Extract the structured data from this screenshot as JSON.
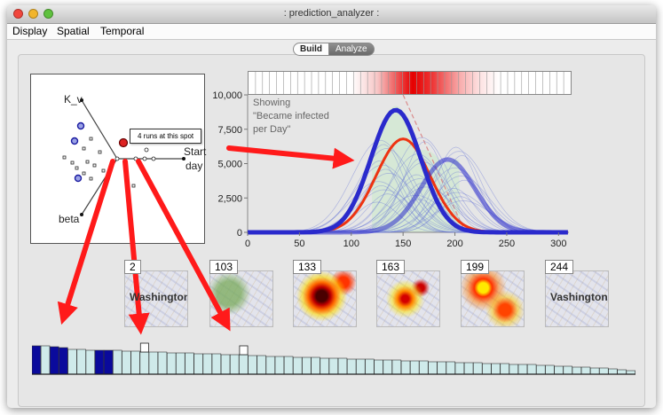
{
  "window": {
    "title": ": prediction_analyzer :"
  },
  "menu": {
    "items": [
      "Display",
      "Spatial",
      "Temporal"
    ]
  },
  "mode_switch": {
    "build": "Build",
    "analyze": "Analyze",
    "selected": "Analyze"
  },
  "parameter_plot": {
    "axes": {
      "kv": "K_v",
      "start": "Start",
      "day": "day",
      "beta": "beta"
    },
    "tooltip": "4 runs at this spot"
  },
  "chart_data": {
    "type": "line",
    "annotation": [
      "Showing",
      "\"Became infected",
      " per Day\""
    ],
    "xticks": [
      0,
      50,
      100,
      150,
      200,
      250,
      300
    ],
    "yticks": [
      "0",
      "2,500",
      "5,000",
      "7,500",
      "10,000"
    ],
    "xlim": [
      0,
      310
    ],
    "ylim": [
      0,
      10000
    ],
    "series_colors": {
      "highlight": "#2a2acc",
      "mean": "#ee3311",
      "ensemble": "#6b78d6",
      "envelope": "#cfe8cf"
    },
    "highlighted": [
      {
        "peak_day": 143,
        "peak_value": 8900,
        "width": 24
      },
      {
        "peak_day": 193,
        "peak_value": 5300,
        "width": 26
      }
    ],
    "mean_curve": {
      "peak_day": 150,
      "peak_value": 6800,
      "width": 26
    }
  },
  "thumbnails": [
    {
      "day": "2",
      "heat": 0,
      "city": "Washington"
    },
    {
      "day": "103",
      "heat": 1,
      "city": ""
    },
    {
      "day": "133",
      "heat": 3,
      "city": ""
    },
    {
      "day": "163",
      "heat": 4,
      "city": ""
    },
    {
      "day": "199",
      "heat": 2,
      "city": ""
    },
    {
      "day": "244",
      "heat": 0,
      "city": "Vashington"
    }
  ],
  "run_bars": {
    "values": [
      32,
      32,
      31,
      30,
      28,
      28,
      27,
      27,
      27,
      27,
      26,
      26,
      25,
      25,
      25,
      24,
      24,
      24,
      23,
      23,
      23,
      22,
      22,
      22,
      21,
      21,
      20,
      20,
      20,
      19,
      19,
      19,
      18,
      18,
      18,
      17,
      17,
      17,
      16,
      16,
      16,
      15,
      15,
      15,
      14,
      14,
      14,
      13,
      13,
      13,
      12,
      12,
      12,
      11,
      11,
      11,
      10,
      10,
      9,
      9,
      8,
      8,
      7,
      7,
      6,
      5,
      4
    ],
    "highlighted": [
      0,
      2,
      3,
      7,
      8
    ],
    "outlined": [
      12,
      23
    ]
  }
}
